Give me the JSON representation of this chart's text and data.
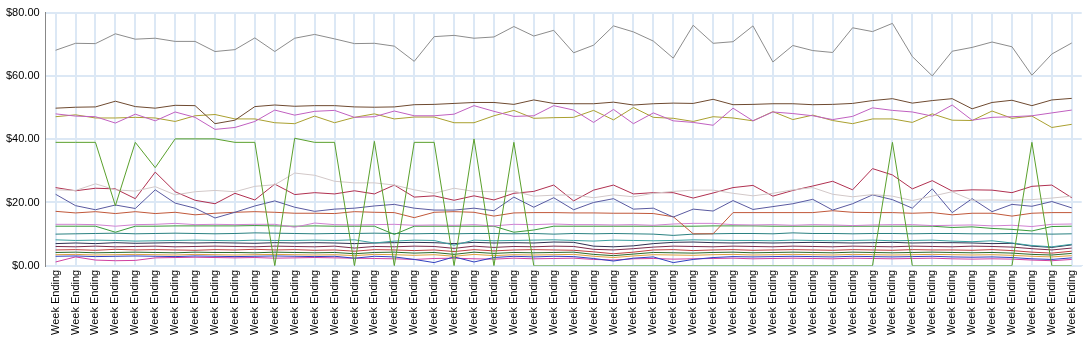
{
  "chart_data": {
    "type": "line",
    "categories": [
      "Week Ending",
      "Week Ending",
      "Week Ending",
      "Week Ending",
      "Week Ending",
      "Week Ending",
      "Week Ending",
      "Week Ending",
      "Week Ending",
      "Week Ending",
      "Week Ending",
      "Week Ending",
      "Week Ending",
      "Week Ending",
      "Week Ending",
      "Week Ending",
      "Week Ending",
      "Week Ending",
      "Week Ending",
      "Week Ending",
      "Week Ending",
      "Week Ending",
      "Week Ending",
      "Week Ending",
      "Week Ending",
      "Week Ending",
      "Week Ending",
      "Week Ending",
      "Week Ending",
      "Week Ending",
      "Week Ending",
      "Week Ending",
      "Week Ending",
      "Week Ending",
      "Week Ending",
      "Week Ending",
      "Week Ending",
      "Week Ending",
      "Week Ending",
      "Week Ending",
      "Week Ending",
      "Week Ending",
      "Week Ending",
      "Week Ending",
      "Week Ending",
      "Week Ending",
      "Week Ending",
      "Week Ending",
      "Week Ending",
      "Week Ending",
      "Week Ending",
      "Week Ending"
    ],
    "ylim": [
      0,
      80
    ],
    "yticks": [
      {
        "value": 0,
        "label": "$0.00"
      },
      {
        "value": 20,
        "label": "$20.00"
      },
      {
        "value": 40,
        "label": "$40.00"
      },
      {
        "value": 60,
        "label": "$60.00"
      },
      {
        "value": 80,
        "label": "$80.00"
      }
    ],
    "grid": true,
    "legend": false,
    "marker": "none",
    "line_style": "solid",
    "series": [
      {
        "color": "#8c8c8c",
        "values": [
          68.1,
          70.3,
          70.2,
          73.3,
          71.6,
          71.9,
          70.9,
          70.9,
          67.7,
          68.3,
          72.0,
          67.7,
          71.9,
          73.1,
          71.7,
          70.2,
          70.3,
          69.4,
          64.6,
          72.4,
          72.8,
          71.9,
          72.3,
          75.6,
          72.6,
          74.4,
          67.3,
          69.7,
          75.8,
          73.9,
          71.0,
          65.6,
          76.0,
          70.3,
          70.8,
          75.8,
          64.4,
          69.6,
          68.0,
          67.4,
          75.2,
          74.0,
          76.6,
          66.1,
          60.0,
          67.8,
          69.0,
          70.7,
          69.2,
          60.2,
          66.9,
          70.4
        ]
      },
      {
        "color": "#6e4a30",
        "values": [
          49.8,
          50.1,
          50.2,
          52.0,
          50.3,
          49.8,
          50.7,
          50.6,
          44.9,
          46.0,
          50.3,
          50.8,
          50.4,
          50.6,
          50.6,
          50.2,
          50.1,
          50.2,
          50.9,
          51.0,
          51.3,
          51.6,
          51.6,
          51.0,
          52.4,
          51.3,
          51.2,
          51.2,
          51.7,
          50.8,
          51.2,
          51.4,
          51.3,
          52.6,
          50.9,
          51.0,
          51.2,
          51.2,
          50.9,
          51.0,
          51.3,
          52.2,
          52.8,
          51.4,
          52.2,
          52.8,
          49.6,
          51.6,
          52.3,
          50.6,
          52.4,
          52.9
        ]
      },
      {
        "color": "#c060c0",
        "values": [
          48.0,
          47.3,
          47.1,
          45.1,
          47.9,
          45.8,
          48.6,
          46.9,
          43.1,
          43.7,
          45.6,
          49.2,
          47.6,
          48.8,
          49.1,
          46.9,
          47.1,
          48.9,
          47.4,
          47.4,
          47.9,
          50.6,
          48.8,
          47.2,
          47.4,
          50.6,
          49.2,
          45.3,
          49.4,
          44.9,
          48.3,
          45.8,
          45.3,
          44.4,
          49.8,
          45.8,
          48.6,
          48.1,
          47.4,
          46.2,
          47.2,
          49.9,
          49.1,
          48.6,
          47.3,
          50.8,
          46.0,
          46.9,
          47.1,
          47.4,
          48.3,
          49.2
        ]
      },
      {
        "color": "#aaa030",
        "values": [
          47.1,
          47.7,
          46.7,
          46.7,
          46.9,
          46.7,
          45.6,
          47.4,
          47.8,
          46.4,
          46.4,
          45.2,
          44.9,
          47.3,
          45.2,
          46.9,
          48.0,
          46.4,
          47.0,
          47.0,
          45.2,
          45.2,
          47.4,
          49.1,
          46.6,
          46.8,
          46.9,
          49.1,
          46.1,
          50.0,
          46.9,
          46.6,
          45.6,
          47.1,
          46.7,
          45.8,
          48.7,
          46.2,
          47.6,
          45.9,
          44.9,
          46.4,
          46.4,
          45.3,
          48.0,
          46.0,
          45.9,
          48.9,
          46.6,
          47.3,
          43.7,
          44.7
        ]
      },
      {
        "color": "#5aa02c",
        "values": [
          39.0,
          39.0,
          39.0,
          19.0,
          39.0,
          31.0,
          40.1,
          40.1,
          40.1,
          39.0,
          39.0,
          0,
          40.3,
          39.0,
          39.0,
          0,
          39.3,
          0,
          39.0,
          39.0,
          0,
          40.1,
          0,
          39.0,
          0,
          0,
          0,
          0,
          0,
          0,
          0,
          0,
          0,
          0,
          0,
          0,
          0,
          0,
          0,
          0,
          0,
          0,
          39.0,
          0,
          0,
          0,
          0,
          0,
          0,
          39.0,
          0,
          0
        ]
      },
      {
        "color": "#d2c8c8",
        "values": [
          24.0,
          23.8,
          25.9,
          24.0,
          23.6,
          25.0,
          22.4,
          23.4,
          23.8,
          23.4,
          25.1,
          25.6,
          29.3,
          28.6,
          26.7,
          26.2,
          26.2,
          25.5,
          24.0,
          22.9,
          24.5,
          23.5,
          23.4,
          23.6,
          22.0,
          22.3,
          22.4,
          21.5,
          22.4,
          21.8,
          22.9,
          23.5,
          23.9,
          23.9,
          22.9,
          22.1,
          22.9,
          24.0,
          24.7,
          22.6,
          21.8,
          22.5,
          22.0,
          20.6,
          22.0,
          23.4,
          20.7,
          20.8,
          20.7,
          20.9,
          21.4,
          22.0
        ]
      },
      {
        "color": "#b03050",
        "values": [
          24.7,
          23.7,
          24.5,
          24.3,
          21.2,
          29.6,
          23.4,
          20.7,
          19.6,
          22.9,
          20.8,
          25.8,
          22.5,
          23.1,
          22.7,
          23.7,
          22.7,
          25.5,
          21.7,
          22.1,
          20.7,
          22.1,
          20.8,
          22.9,
          23.5,
          25.5,
          20.5,
          23.9,
          25.5,
          22.7,
          23.1,
          23.1,
          21.4,
          23.0,
          24.7,
          25.4,
          22.0,
          23.8,
          25.2,
          26.7,
          24.0,
          30.7,
          28.7,
          24.3,
          26.9,
          23.6,
          24.0,
          23.9,
          23.1,
          25.1,
          25.5,
          21.5
        ]
      },
      {
        "color": "#5a5aa0",
        "values": [
          22.6,
          19.0,
          17.7,
          19.2,
          18.1,
          24.0,
          19.8,
          18.2,
          15.1,
          16.9,
          18.9,
          20.5,
          18.5,
          17.2,
          17.9,
          18.2,
          18.9,
          19.4,
          18.2,
          17.6,
          17.6,
          18.2,
          17.4,
          21.7,
          18.5,
          21.5,
          17.7,
          20.0,
          21.2,
          17.9,
          18.2,
          15.4,
          17.9,
          17.3,
          20.6,
          17.8,
          18.7,
          19.6,
          21.0,
          17.6,
          19.6,
          22.4,
          20.9,
          18.2,
          24.3,
          16.8,
          21.2,
          17.1,
          19.4,
          18.8,
          20.3,
          18.3
        ]
      },
      {
        "color": "#c0583a",
        "values": [
          17.2,
          16.7,
          17.1,
          16.5,
          17.1,
          16.5,
          16.9,
          16.1,
          16.6,
          16.9,
          17.1,
          16.9,
          16.6,
          16.6,
          16.5,
          17.1,
          16.9,
          16.8,
          15.2,
          16.9,
          17.1,
          16.9,
          15.7,
          16.7,
          16.8,
          16.8,
          16.7,
          16.7,
          16.6,
          16.6,
          16.5,
          15.5,
          10.1,
          10.1,
          16.8,
          16.8,
          16.8,
          16.8,
          16.8,
          17.4,
          16.9,
          16.8,
          16.8,
          16.6,
          16.8,
          16.1,
          16.6,
          16.6,
          15.7,
          16.6,
          16.8,
          16.8
        ]
      },
      {
        "color": "#d080d0",
        "values": [
          13.1,
          13.1,
          13.0,
          12.5,
          13.0,
          13.1,
          13.4,
          13.0,
          13.1,
          13.0,
          13.1,
          13.1,
          12.2,
          13.5,
          13.0,
          12.9,
          13.0,
          13.1,
          12.8,
          12.9,
          12.8,
          13.0,
          12.6,
          13.1,
          13.0,
          13.2,
          13.0,
          13.0,
          12.9,
          13.0,
          12.8,
          13.2,
          13.4,
          13.4,
          13.0,
          12.9,
          13.0,
          12.8,
          13.0,
          12.9,
          12.7,
          12.9,
          13.0,
          13.0,
          12.7,
          12.8,
          12.9,
          12.6,
          12.8,
          12.4,
          13.1,
          13.2
        ]
      },
      {
        "color": "#3a9a3a",
        "values": [
          12.5,
          12.5,
          12.5,
          10.6,
          12.5,
          12.5,
          12.6,
          12.6,
          12.6,
          12.6,
          12.7,
          12.6,
          12.5,
          12.6,
          12.5,
          12.5,
          12.5,
          9.9,
          12.5,
          12.5,
          12.5,
          12.5,
          12.5,
          10.6,
          11.3,
          12.5,
          12.5,
          12.5,
          12.5,
          12.5,
          12.5,
          12.5,
          12.5,
          12.6,
          12.6,
          12.6,
          12.5,
          12.5,
          12.5,
          12.5,
          12.5,
          12.5,
          12.5,
          12.5,
          12.5,
          12.1,
          12.3,
          11.8,
          11.5,
          11.0,
          12.4,
          12.5
        ]
      },
      {
        "color": "#2a8080",
        "values": [
          10.0,
          10.1,
          10.2,
          10.3,
          10.1,
          10.2,
          10.3,
          10.2,
          10.1,
          10.2,
          10.4,
          10.3,
          10.2,
          10.1,
          10.2,
          10.2,
          10.3,
          10.2,
          10.1,
          10.2,
          10.1,
          10.2,
          10.2,
          10.1,
          10.2,
          10.0,
          10.2,
          10.1,
          10.2,
          10.1,
          10.0,
          9.6,
          10.0,
          10.1,
          10.2,
          10.2,
          10.1,
          10.4,
          10.2,
          10.2,
          10.1,
          10.2,
          10.2,
          10.1,
          10.2,
          10.2,
          10.1,
          10.1,
          10.2,
          10.1,
          10.0,
          10.1
        ]
      },
      {
        "color": "#3aa0a0",
        "values": [
          8.2,
          8.0,
          8.1,
          8.0,
          7.8,
          7.9,
          8.0,
          8.1,
          8.0,
          7.9,
          8.1,
          8.0,
          8.0,
          8.1,
          8.0,
          8.2,
          7.2,
          7.8,
          8.1,
          8.0,
          6.5,
          8.1,
          7.9,
          8.0,
          8.1,
          8.2,
          8.0,
          7.8,
          8.1,
          8.0,
          7.9,
          8.0,
          8.2,
          8.1,
          8.0,
          8.0,
          7.9,
          8.1,
          8.0,
          7.9,
          8.0,
          8.1,
          7.9,
          8.0,
          8.1,
          7.8,
          7.6,
          7.9,
          7.2,
          6.4,
          6.0,
          6.8
        ]
      },
      {
        "color": "#303050",
        "values": [
          7.0,
          7.2,
          7.0,
          7.3,
          7.1,
          7.2,
          7.3,
          7.2,
          7.3,
          7.2,
          7.1,
          7.3,
          7.2,
          7.3,
          7.2,
          7.0,
          7.2,
          7.3,
          7.4,
          7.3,
          7.0,
          7.4,
          7.2,
          7.3,
          7.2,
          7.5,
          7.4,
          6.2,
          6.0,
          6.3,
          7.0,
          7.4,
          7.5,
          7.3,
          7.2,
          7.3,
          7.2,
          7.3,
          7.4,
          7.3,
          7.2,
          7.3,
          7.4,
          7.2,
          7.3,
          7.3,
          7.2,
          7.0,
          7.1,
          6.2,
          5.8,
          6.6
        ]
      },
      {
        "color": "#7a2a4a",
        "values": [
          6.1,
          6.0,
          6.2,
          6.0,
          6.1,
          6.2,
          6.0,
          6.1,
          6.2,
          6.1,
          6.0,
          6.2,
          6.1,
          6.0,
          6.2,
          5.6,
          6.1,
          6.0,
          6.2,
          6.1,
          5.5,
          6.2,
          5.8,
          6.1,
          6.0,
          6.2,
          6.1,
          5.2,
          5.0,
          5.4,
          5.9,
          6.2,
          6.1,
          6.0,
          6.2,
          6.1,
          6.0,
          6.2,
          6.1,
          6.0,
          6.2,
          6.1,
          6.0,
          6.2,
          6.1,
          6.0,
          6.2,
          6.1,
          5.9,
          5.4,
          5.0,
          5.6
        ]
      },
      {
        "color": "#c04040",
        "values": [
          5.0,
          5.1,
          4.9,
          5.2,
          5.0,
          5.1,
          5.0,
          4.9,
          5.1,
          5.0,
          5.2,
          5.0,
          5.1,
          4.9,
          5.0,
          4.6,
          5.1,
          5.0,
          4.8,
          5.0,
          4.5,
          5.1,
          4.7,
          5.0,
          5.1,
          5.0,
          4.9,
          4.4,
          3.8,
          4.3,
          5.0,
          5.1,
          4.8,
          5.0,
          5.1,
          4.9,
          5.0,
          5.1,
          5.0,
          4.9,
          5.1,
          5.0,
          4.9,
          5.1,
          5.0,
          5.0,
          4.9,
          5.1,
          4.8,
          4.3,
          4.0,
          4.6
        ]
      },
      {
        "color": "#2a6a2a",
        "values": [
          4.2,
          4.3,
          4.1,
          4.2,
          4.3,
          4.2,
          4.1,
          4.3,
          4.2,
          4.2,
          4.1,
          4.3,
          4.2,
          4.1,
          4.2,
          3.8,
          4.2,
          4.3,
          4.0,
          4.2,
          3.6,
          4.3,
          3.9,
          4.2,
          4.1,
          4.2,
          4.3,
          3.6,
          3.2,
          3.7,
          4.2,
          4.1,
          4.0,
          4.2,
          4.3,
          4.1,
          4.2,
          4.3,
          4.2,
          4.1,
          4.3,
          4.2,
          4.1,
          4.2,
          4.3,
          4.2,
          4.1,
          4.2,
          4.0,
          3.6,
          3.4,
          3.9
        ]
      },
      {
        "color": "#e0a040",
        "values": [
          3.5,
          3.6,
          3.4,
          3.5,
          3.6,
          3.5,
          3.4,
          3.6,
          3.5,
          3.4,
          3.5,
          3.6,
          3.5,
          3.4,
          3.5,
          3.2,
          3.6,
          3.5,
          3.3,
          3.5,
          3.0,
          3.6,
          3.2,
          3.5,
          3.4,
          3.5,
          3.6,
          3.0,
          2.6,
          3.1,
          3.5,
          3.4,
          3.3,
          3.5,
          3.6,
          3.4,
          3.5,
          3.6,
          3.5,
          3.4,
          3.6,
          3.5,
          3.4,
          3.5,
          3.6,
          3.5,
          3.4,
          3.5,
          3.3,
          3.0,
          2.8,
          3.2
        ]
      },
      {
        "color": "#3040c0",
        "values": [
          3.0,
          3.1,
          2.9,
          3.0,
          3.1,
          3.0,
          2.9,
          3.1,
          3.0,
          2.9,
          3.0,
          3.1,
          3.0,
          2.9,
          3.0,
          2.4,
          3.0,
          2.8,
          2.0,
          1.0,
          2.8,
          1.2,
          2.6,
          3.0,
          2.8,
          3.0,
          2.9,
          2.3,
          1.5,
          2.4,
          2.8,
          1.0,
          2.0,
          2.6,
          2.9,
          2.8,
          2.9,
          3.0,
          2.9,
          2.8,
          3.0,
          2.9,
          2.8,
          2.9,
          3.0,
          2.8,
          2.7,
          2.8,
          2.6,
          2.2,
          2.0,
          2.5
        ]
      },
      {
        "color": "#d040a0",
        "values": [
          1.2,
          2.8,
          1.8,
          1.6,
          1.7,
          2.5,
          2.6,
          2.7,
          2.6,
          2.5,
          2.6,
          2.4,
          2.5,
          2.6,
          2.5,
          2.4,
          2.3,
          2.2,
          2.0,
          2.3,
          2.4,
          2.2,
          2.1,
          2.4,
          2.2,
          2.3,
          2.4,
          2.0,
          1.8,
          2.2,
          2.3,
          2.1,
          2.2,
          2.3,
          2.4,
          2.2,
          2.3,
          2.4,
          2.3,
          2.2,
          2.4,
          2.3,
          2.2,
          2.3,
          2.4,
          2.2,
          2.1,
          2.2,
          2.1,
          1.8,
          1.6,
          2.0
        ]
      }
    ]
  }
}
